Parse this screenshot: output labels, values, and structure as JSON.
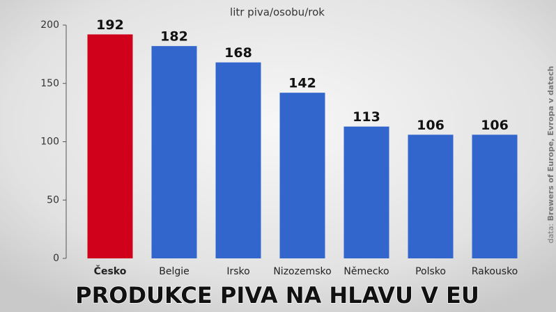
{
  "chart_data": {
    "type": "bar",
    "title": "PRODUKCE PIVA NA HLAVU V EU",
    "subtitle": "litr piva/osobu/rok",
    "source_label": "data:",
    "source": "Brewers of Europe, Evropa v datech",
    "categories": [
      "Česko",
      "Belgie",
      "Irsko",
      "Nizozemsko",
      "Německo",
      "Polsko",
      "Rakousko"
    ],
    "values": [
      192,
      182,
      168,
      142,
      113,
      106,
      106
    ],
    "colors": [
      "#d0021b",
      "#3366cc",
      "#3366cc",
      "#3366cc",
      "#3366cc",
      "#3366cc",
      "#3366cc"
    ],
    "ylim": [
      0,
      200
    ],
    "yticks": [
      0,
      50,
      100,
      150,
      200
    ],
    "grid": false
  }
}
